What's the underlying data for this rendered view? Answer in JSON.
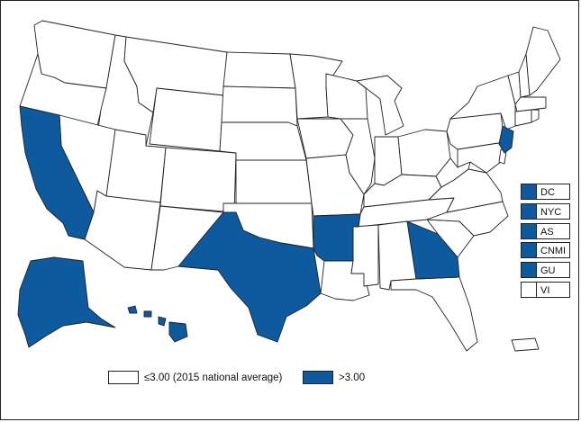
{
  "colors": {
    "above": "#0d5a9e",
    "below": "#ffffff",
    "border": "#222222"
  },
  "legend": [
    {
      "label": "≤3.00 (2015 national average)",
      "class": "below"
    },
    {
      "label": ">3.00",
      "class": "above"
    }
  ],
  "jurisdictions_above_average": [
    "California",
    "Texas",
    "Arkansas",
    "Georgia",
    "New Jersey",
    "Alaska",
    "Hawaii"
  ],
  "insets": [
    {
      "label": "DC",
      "class": "above"
    },
    {
      "label": "NYC",
      "class": "above"
    },
    {
      "label": "AS",
      "class": "above"
    },
    {
      "label": "CNMI",
      "class": "above"
    },
    {
      "label": "GU",
      "class": "above"
    },
    {
      "label": "VI",
      "class": "below"
    }
  ]
}
